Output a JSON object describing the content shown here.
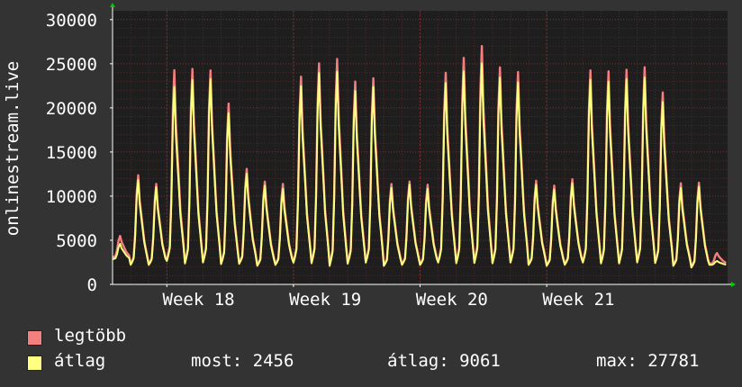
{
  "colors": {
    "background": "#333333",
    "plot_background": "#1e1e1e",
    "grid": "#7a3030",
    "axis": "#ffffff",
    "max_series": "#f47f7f",
    "avg_series": "#ffff80",
    "arrow": "#00cc00"
  },
  "chart_data": {
    "type": "area",
    "ylabel": "onlinestream.live",
    "ylim": [
      0,
      31000
    ],
    "yticks": [
      0,
      5000,
      10000,
      15000,
      20000,
      25000,
      30000
    ],
    "ytick_labels": [
      "0",
      "5000",
      "10000",
      "15000",
      "20000",
      "25000",
      "30000"
    ],
    "xticks": [
      "Week 18",
      "Week 19",
      "Week 20",
      "Week 21"
    ],
    "grid": true,
    "legend_position": "bottom-left",
    "series": [
      {
        "name": "legtöbb",
        "color": "#f47f7f",
        "daily_peaks": [
          5800,
          13600,
          12500,
          26900,
          27100,
          26900,
          22700,
          14400,
          12800,
          12500,
          26100,
          27800,
          28400,
          25500,
          25900,
          12500,
          12800,
          12400,
          26600,
          28500,
          30000,
          27300,
          26700,
          12900,
          12300,
          13100,
          26900,
          26800,
          27000,
          27300,
          24100,
          12600,
          12700,
          3700
        ],
        "daily_mins": [
          3000,
          2100,
          2100,
          2300,
          2000,
          2100,
          2000,
          2200,
          2000,
          2100,
          2100,
          2000,
          1700,
          2000,
          2100,
          2000,
          2100,
          2100,
          2100,
          2000,
          2000,
          2000,
          2100,
          2100,
          2000,
          2100,
          2100,
          2000,
          2000,
          2100,
          2100,
          2000,
          1800,
          2300
        ]
      },
      {
        "name": "átlag",
        "color": "#ffff80",
        "daily_peaks": [
          4800,
          13000,
          12100,
          24800,
          25700,
          25800,
          21500,
          13800,
          12300,
          11900,
          24900,
          26600,
          26800,
          24300,
          24800,
          12000,
          12400,
          11900,
          25300,
          26800,
          27800,
          26000,
          25400,
          12400,
          11800,
          12600,
          25700,
          25500,
          25800,
          26000,
          22900,
          12000,
          12200,
          2700
        ],
        "daily_mins": [
          2800,
          2000,
          2000,
          2200,
          1900,
          2000,
          1900,
          2100,
          1900,
          2000,
          2000,
          1900,
          1600,
          1900,
          2000,
          1900,
          2000,
          2000,
          2000,
          1900,
          1900,
          1900,
          2000,
          2000,
          1900,
          2000,
          2000,
          1900,
          1900,
          2000,
          2000,
          1900,
          1700,
          2200
        ]
      }
    ]
  },
  "legend": {
    "items": [
      {
        "label": "legtöbb",
        "color": "#f47f7f"
      },
      {
        "label": "átlag",
        "color": "#ffff80"
      }
    ],
    "stats": {
      "now": "most: 2456",
      "avg": "átlag: 9061",
      "max": "max: 27781"
    }
  }
}
